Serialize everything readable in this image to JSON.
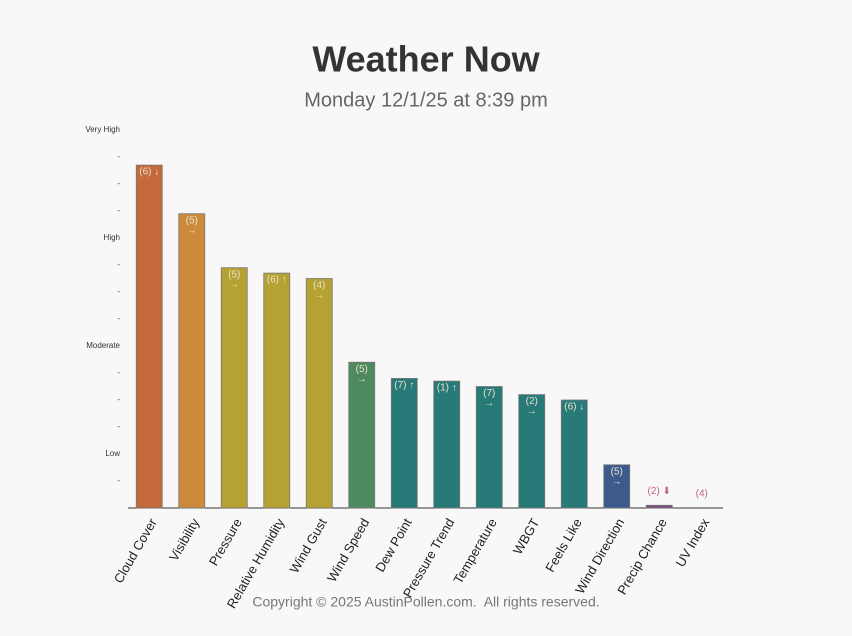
{
  "chart_data": {
    "type": "bar",
    "title": "Weather Now",
    "subtitle": "Monday 12/1/25 at 8:39 pm",
    "categories": [
      "Cloud Cover",
      "Visibility",
      "Pressure",
      "Relative Humidity",
      "Wind Gust",
      "Wind Speed",
      "Dew Point",
      "Pressure Trend",
      "Temperature",
      "WBGT",
      "Feels Like",
      "Wind Direction",
      "Precip Chance",
      "UV Index"
    ],
    "values": [
      12.7,
      10.9,
      8.9,
      8.7,
      8.5,
      5.4,
      4.8,
      4.7,
      4.5,
      4.2,
      4.0,
      1.6,
      0.1,
      0
    ],
    "colors": [
      "#c4693a",
      "#cd8a3a",
      "#b5a232",
      "#b5a232",
      "#b5a232",
      "#4e8a5e",
      "#287a78",
      "#287a78",
      "#287a78",
      "#287a78",
      "#287a78",
      "#3c5a8c",
      "#7a4a7a",
      "#8a4a6a"
    ],
    "bar_labels": [
      [
        "(6) ↓"
      ],
      [
        "(5)",
        "→"
      ],
      [
        "(5)",
        "→"
      ],
      [
        "(6) ↑"
      ],
      [
        "(4)",
        "→"
      ],
      [
        "(5)",
        "→"
      ],
      [
        "(7) ↑"
      ],
      [
        "(1) ↑"
      ],
      [
        "(7)",
        "→"
      ],
      [
        "(2)",
        "→"
      ],
      [
        "(6) ↓"
      ],
      [
        "(5)",
        "→"
      ],
      [
        "(2) ⬇"
      ],
      [
        "(4)"
      ]
    ],
    "ylim": [
      0,
      14
    ],
    "yticks": [
      {
        "value": 1,
        "label": "-"
      },
      {
        "value": 2,
        "label": "Low"
      },
      {
        "value": 3,
        "label": "-"
      },
      {
        "value": 4,
        "label": "-"
      },
      {
        "value": 5,
        "label": "-"
      },
      {
        "value": 6,
        "label": "Moderate"
      },
      {
        "value": 7,
        "label": "-"
      },
      {
        "value": 8,
        "label": "-"
      },
      {
        "value": 9,
        "label": "-"
      },
      {
        "value": 10,
        "label": "High"
      },
      {
        "value": 11,
        "label": "-"
      },
      {
        "value": 12,
        "label": "-"
      },
      {
        "value": 13,
        "label": "-"
      },
      {
        "value": 14,
        "label": "Very High"
      }
    ],
    "footer": "Copyright © 2025 AustinPollen.com.  All rights reserved."
  }
}
